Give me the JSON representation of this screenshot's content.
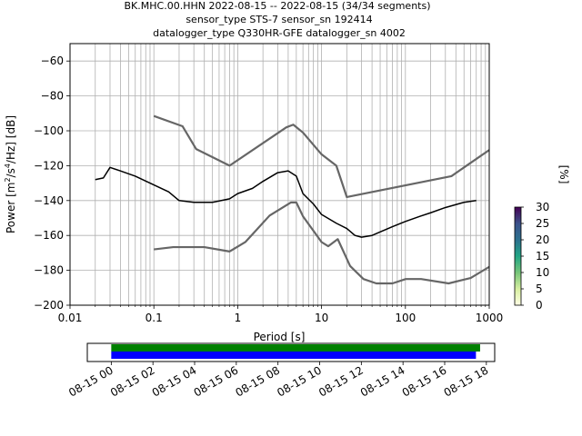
{
  "chart_data": [
    {
      "type": "heatmap",
      "title_lines": [
        "BK.MHC.00.HHN   2022-08-15 -- 2022-08-15  (34/34 segments)",
        "sensor_type STS-7 sensor_sn 192414",
        "datalogger_type Q330HR-GFE datalogger_sn 4002"
      ],
      "xlabel": "Period [s]",
      "ylabel_parts": [
        "Power [m",
        "2",
        "/s",
        "4",
        "/Hz] [dB]"
      ],
      "xscale": "log",
      "xlim": [
        0.01,
        1000
      ],
      "ylim": [
        -200,
        -50
      ],
      "xticks": [
        {
          "value": 0.01,
          "label": "0.01"
        },
        {
          "value": 0.1,
          "label": "0.1"
        },
        {
          "value": 1,
          "label": "1"
        },
        {
          "value": 10,
          "label": "10"
        },
        {
          "value": 100,
          "label": "100"
        },
        {
          "value": 1000,
          "label": "1000"
        }
      ],
      "yticks": [
        {
          "value": -60,
          "label": "−60"
        },
        {
          "value": -80,
          "label": "−80"
        },
        {
          "value": -100,
          "label": "−100"
        },
        {
          "value": -120,
          "label": "−120"
        },
        {
          "value": -140,
          "label": "−140"
        },
        {
          "value": -160,
          "label": "−160"
        },
        {
          "value": -180,
          "label": "−180"
        },
        {
          "value": -200,
          "label": "−200"
        }
      ],
      "grid": true,
      "colorbar": {
        "label": "[%]",
        "range": [
          0,
          30
        ],
        "colormap": [
          "#ffffe5",
          "#d9f0a3",
          "#78c679",
          "#21a585",
          "#2c728e",
          "#3b528b",
          "#440154"
        ],
        "ticks": [
          {
            "value": 0,
            "label": "0"
          },
          {
            "value": 5,
            "label": "5"
          },
          {
            "value": 10,
            "label": "10"
          },
          {
            "value": 15,
            "label": "15"
          },
          {
            "value": 20,
            "label": "20"
          },
          {
            "value": 25,
            "label": "25"
          },
          {
            "value": 30,
            "label": "30"
          }
        ]
      },
      "mode_curve": {
        "color": "#000000",
        "x": [
          0.02,
          0.025,
          0.03,
          0.04,
          0.06,
          0.1,
          0.15,
          0.2,
          0.3,
          0.5,
          0.8,
          1.0,
          1.5,
          2.0,
          3.0,
          4.0,
          5.0,
          6.0,
          8.0,
          10.0,
          15.0,
          20.0,
          25.0,
          30.0,
          40.0,
          50.0,
          70.0,
          100.0,
          150.0,
          200.0,
          300.0,
          500.0,
          700.0
        ],
        "y": [
          -128,
          -127,
          -121,
          -123,
          -126,
          -131,
          -135,
          -140,
          -141,
          -141,
          -139,
          -136,
          -133,
          -129,
          -124,
          -123,
          -126,
          -136,
          -142,
          -148,
          -153,
          -156,
          -160,
          -161,
          -160,
          -158,
          -155,
          -152,
          -149,
          -147,
          -144,
          -141,
          -140
        ]
      },
      "noise_model_high": {
        "color": "#666666",
        "x": [
          0.1,
          0.22,
          0.32,
          0.8,
          3.8,
          4.6,
          6.0,
          10.0,
          15.0,
          20.0,
          354.0,
          1000.0
        ],
        "y": [
          -91.5,
          -97.4,
          -110.5,
          -120.0,
          -98.0,
          -96.5,
          -101.0,
          -113.5,
          -120.0,
          -138.0,
          -126.0,
          -111.0
        ]
      },
      "noise_model_low": {
        "color": "#666666",
        "x": [
          0.1,
          0.17,
          0.4,
          0.8,
          1.24,
          2.4,
          4.3,
          5.0,
          6.0,
          10.0,
          12.0,
          15.6,
          21.9,
          31.6,
          45.0,
          70.0,
          101.0,
          154.0,
          328.0,
          600.0,
          1000.0
        ],
        "y": [
          -168.0,
          -166.7,
          -166.7,
          -169.2,
          -163.7,
          -148.6,
          -141.1,
          -141.1,
          -149.0,
          -163.8,
          -166.2,
          -162.1,
          -177.5,
          -185.0,
          -187.5,
          -187.5,
          -185.0,
          -185.0,
          -187.5,
          -184.4,
          -178.0
        ]
      },
      "density_band": {
        "x": [
          0.02,
          0.03,
          0.05,
          0.1,
          0.2,
          0.4,
          0.8,
          1.5,
          3.0,
          4.0,
          6.0,
          10.0,
          20.0,
          30.0,
          50.0,
          100.0,
          200.0,
          400.0,
          700.0
        ],
        "y_top": [
          -125,
          -115,
          -118,
          -126,
          -134,
          -136,
          -137,
          -131,
          -122,
          -121,
          -128,
          -140,
          -148,
          -151,
          -148,
          -142,
          -136,
          -132,
          -131
        ],
        "y_bottom": [
          -131,
          -129,
          -134,
          -139,
          -144,
          -146,
          -142,
          -138,
          -127,
          -126,
          -135,
          -152,
          -165,
          -172,
          -170,
          -166,
          -161,
          -157,
          -153
        ]
      }
    },
    {
      "type": "timeline",
      "xlim": [
        "2022-08-15 00:00",
        "2022-08-15 18:40"
      ],
      "xticks": [
        {
          "value": 0,
          "label": "08-15 00"
        },
        {
          "value": 2,
          "label": "08-15 02"
        },
        {
          "value": 4,
          "label": "08-15 04"
        },
        {
          "value": 6,
          "label": "08-15 06"
        },
        {
          "value": 8,
          "label": "08-15 08"
        },
        {
          "value": 10,
          "label": "08-15 10"
        },
        {
          "value": 12,
          "label": "08-15 12"
        },
        {
          "value": 14,
          "label": "08-15 14"
        },
        {
          "value": 16,
          "label": "08-15 16"
        },
        {
          "value": 18,
          "label": "08-15 18"
        }
      ],
      "bars": [
        {
          "start_hour": 0.0,
          "end_hour": 17.7,
          "color": "#008000"
        },
        {
          "start_hour": 0.0,
          "end_hour": 17.5,
          "color": "#0000ff"
        }
      ]
    }
  ]
}
